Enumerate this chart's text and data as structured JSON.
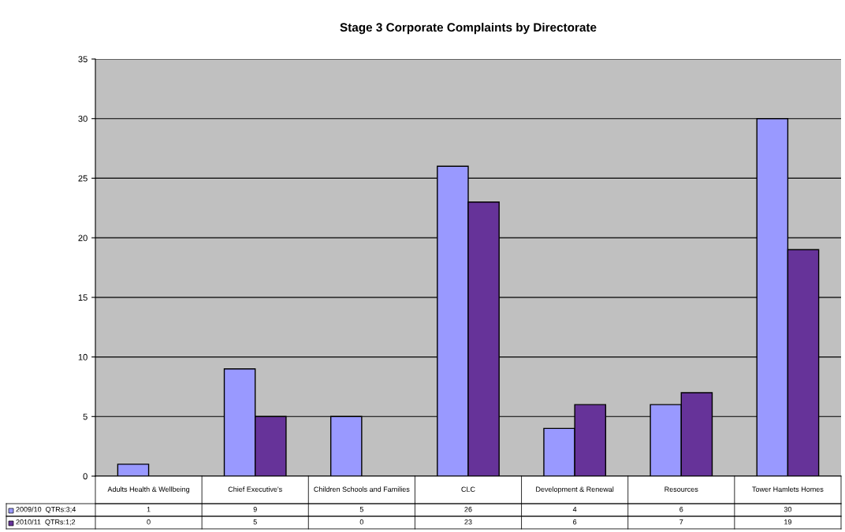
{
  "chart_data": {
    "type": "bar",
    "title": "Stage 3 Corporate Complaints by Directorate",
    "categories": [
      "Adults Health & Wellbeing",
      "Chief Executive's",
      "Children Schools and Families",
      "CLC",
      "Development & Renewal",
      "Resources",
      "Tower Hamlets Homes"
    ],
    "series": [
      {
        "name": "2009/10  QTRs:3;4",
        "color": "#9999ff",
        "values": [
          1,
          9,
          5,
          26,
          4,
          6,
          30
        ]
      },
      {
        "name": "2010/11  QTRs:1;2",
        "color": "#663399",
        "values": [
          0,
          5,
          0,
          23,
          6,
          7,
          19
        ]
      }
    ],
    "ylim": [
      0,
      35
    ],
    "yticks": [
      0,
      5,
      10,
      15,
      20,
      25,
      30,
      35
    ],
    "grid": "y",
    "legend": "bottom left",
    "data_labels": true
  }
}
